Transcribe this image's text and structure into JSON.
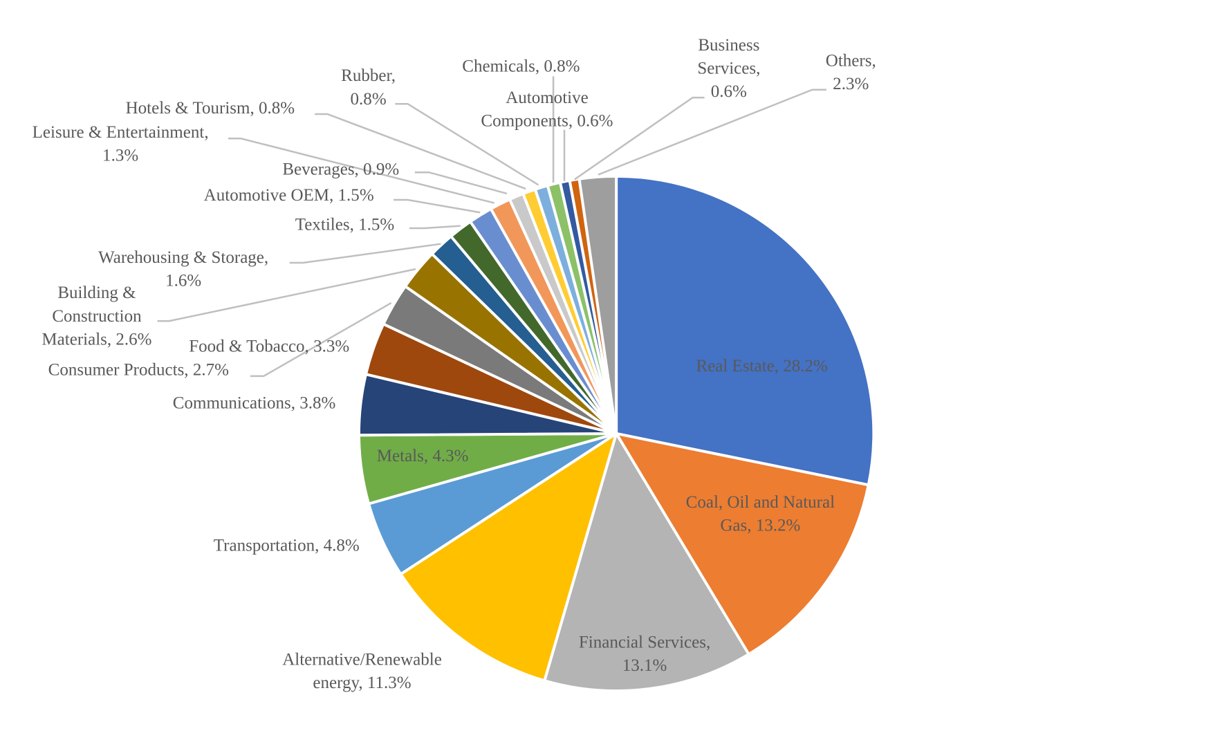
{
  "chart_data": {
    "type": "pie",
    "title": "",
    "start_angle": "12 o'clock",
    "direction": "clockwise",
    "legend": "none",
    "data_labels": "category name and percentage",
    "slices": [
      {
        "label": "Real Estate, 28.2%",
        "lines": [
          "Real Estate, 28.2%"
        ],
        "category": "Real Estate",
        "value": 28.2,
        "color": "#4472C4"
      },
      {
        "label": "Coal, Oil and Natural Gas, 13.2%",
        "lines": [
          "Coal, Oil and Natural",
          "Gas, 13.2%"
        ],
        "category": "Coal, Oil and Natural Gas",
        "value": 13.2,
        "color": "#ED7D31"
      },
      {
        "label": "Financial Services, 13.1%",
        "lines": [
          "Financial Services,",
          "13.1%"
        ],
        "category": "Financial Services",
        "value": 13.1,
        "color": "#B4B4B4"
      },
      {
        "label": "Alternative/Renewable energy, 11.3%",
        "lines": [
          "Alternative/Renewable",
          "energy, 11.3%"
        ],
        "category": "Alternative/Renewable energy",
        "value": 11.3,
        "color": "#FFC000"
      },
      {
        "label": "Transportation, 4.8%",
        "lines": [
          "Transportation, 4.8%"
        ],
        "category": "Transportation",
        "value": 4.8,
        "color": "#5B9BD5"
      },
      {
        "label": "Metals, 4.3%",
        "lines": [
          "Metals, 4.3%"
        ],
        "category": "Metals",
        "value": 4.3,
        "color": "#70AD47"
      },
      {
        "label": "Communications, 3.8%",
        "lines": [
          "Communications, 3.8%"
        ],
        "category": "Communications",
        "value": 3.8,
        "color": "#264478"
      },
      {
        "label": "Food & Tobacco, 3.3%",
        "lines": [
          "Food & Tobacco, 3.3%"
        ],
        "category": "Food & Tobacco",
        "value": 3.3,
        "color": "#9E480E"
      },
      {
        "label": "Consumer Products, 2.7%",
        "lines": [
          "Consumer Products, 2.7%"
        ],
        "category": "Consumer Products",
        "value": 2.7,
        "color": "#7A7A7A"
      },
      {
        "label": "Building & Construction Materials, 2.6%",
        "lines": [
          "Building &",
          "Construction",
          "Materials, 2.6%"
        ],
        "category": "Building & Construction Materials",
        "value": 2.6,
        "color": "#997300"
      },
      {
        "label": "Warehousing & Storage, 1.6%",
        "lines": [
          "Warehousing & Storage,",
          "1.6%"
        ],
        "category": "Warehousing & Storage",
        "value": 1.6,
        "color": "#255E91"
      },
      {
        "label": "Textiles, 1.5%",
        "lines": [
          "Textiles, 1.5%"
        ],
        "category": "Textiles",
        "value": 1.5,
        "color": "#43682B"
      },
      {
        "label": "Automotive OEM, 1.5%",
        "lines": [
          "Automotive OEM, 1.5%"
        ],
        "category": "Automotive OEM",
        "value": 1.5,
        "color": "#698ED0"
      },
      {
        "label": "Leisure & Entertainment, 1.3%",
        "lines": [
          "Leisure & Entertainment,",
          "1.3%"
        ],
        "category": "Leisure & Entertainment",
        "value": 1.3,
        "color": "#F1975A"
      },
      {
        "label": "Beverages, 0.9%",
        "lines": [
          "Beverages, 0.9%"
        ],
        "category": "Beverages",
        "value": 0.9,
        "color": "#C9C9C9"
      },
      {
        "label": "Hotels & Tourism, 0.8%",
        "lines": [
          "Hotels & Tourism, 0.8%"
        ],
        "category": "Hotels & Tourism",
        "value": 0.8,
        "color": "#FFCD33"
      },
      {
        "label": "Rubber, 0.8%",
        "lines": [
          "Rubber,",
          "0.8%"
        ],
        "category": "Rubber",
        "value": 0.8,
        "color": "#7CAFDD"
      },
      {
        "label": "Chemicals, 0.8%",
        "lines": [
          "Chemicals, 0.8%"
        ],
        "category": "Chemicals",
        "value": 0.8,
        "color": "#8CC168"
      },
      {
        "label": "Automotive Components, 0.6%",
        "lines": [
          "Automotive",
          "Components, 0.6%"
        ],
        "category": "Automotive Components",
        "value": 0.6,
        "color": "#335AA1"
      },
      {
        "label": "Business Services, 0.6%",
        "lines": [
          "Business",
          "Services,",
          "0.6%"
        ],
        "category": "Business Services",
        "value": 0.6,
        "color": "#D0640F"
      },
      {
        "label": "Others, 2.3%",
        "lines": [
          "Others,",
          "2.3%"
        ],
        "category": "Others",
        "value": 2.3,
        "color": "#9E9E9E"
      }
    ]
  }
}
